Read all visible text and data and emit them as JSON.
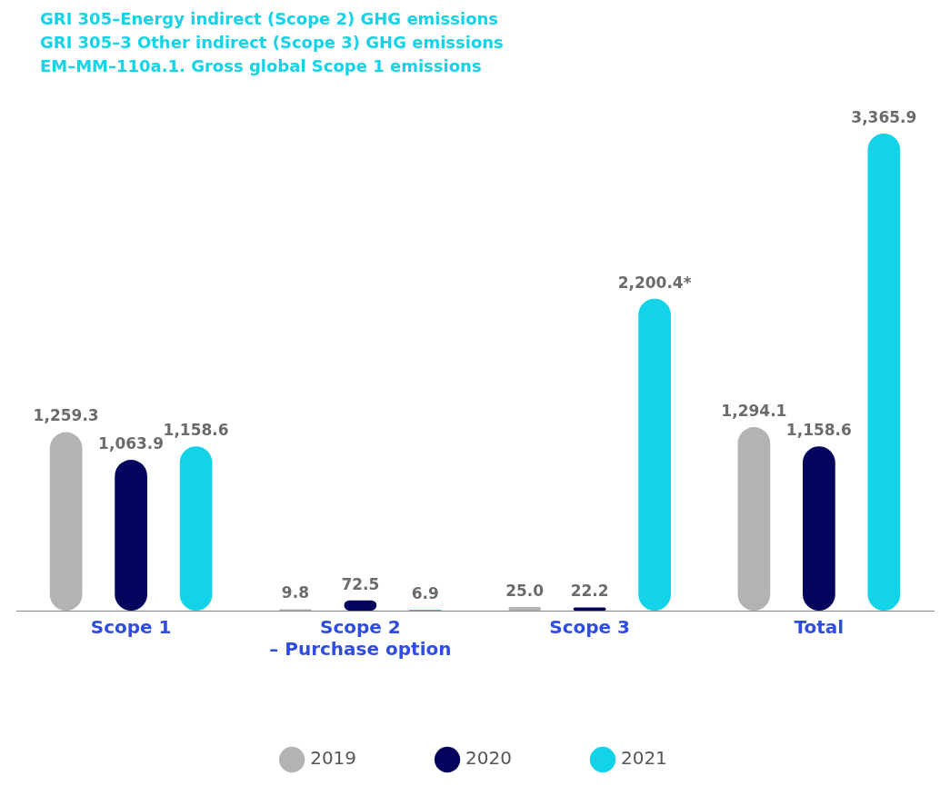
{
  "chart_data": {
    "type": "bar",
    "annotations": [
      "GRI 305–Energy indirect (Scope 2) GHG emissions",
      "GRI 305–3 Other indirect (Scope 3) GHG emissions",
      "EM–MM–110a.1. Gross global Scope 1 emissions"
    ],
    "categories": [
      "Scope 1",
      "Scope 2\n– Purchase option",
      "Scope 3",
      "Total"
    ],
    "series": [
      {
        "name": "2019",
        "color": "#b3b3b3",
        "values": [
          1259.3,
          9.8,
          25.0,
          1294.1
        ],
        "value_labels": [
          "1,259.3",
          "9.8",
          "25.0",
          "1,294.1"
        ]
      },
      {
        "name": "2020",
        "color": "#05055e",
        "values": [
          1063.9,
          72.5,
          22.2,
          1158.6
        ],
        "value_labels": [
          "1,063.9",
          "72.5",
          "22.2",
          "1,158.6"
        ]
      },
      {
        "name": "2021",
        "color": "#12d3e8",
        "values": [
          1158.6,
          6.9,
          2200.4,
          3365.9
        ],
        "value_labels": [
          "1,158.6",
          "6.9",
          "2,200.4*",
          "3,365.9"
        ]
      }
    ],
    "legend": "bottom",
    "grid": false
  }
}
